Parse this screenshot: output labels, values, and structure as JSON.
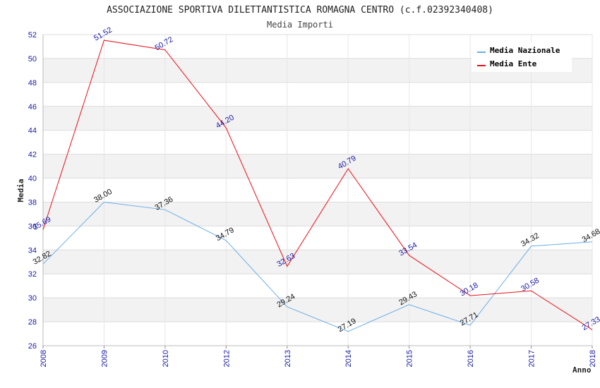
{
  "title": "ASSOCIAZIONE SPORTIVA DILETTANTISTICA ROMAGNA CENTRO (c.f.02392340408)",
  "subtitle": "Media Importi",
  "chart_data": {
    "type": "line",
    "categories": [
      "2008",
      "2009",
      "2010",
      "2012",
      "2013",
      "2014",
      "2015",
      "2016",
      "2017",
      "2018"
    ],
    "series": [
      {
        "name": "Media Nazionale",
        "color": "#6aaee8",
        "label_color": "#111111",
        "values": [
          32.82,
          38.0,
          37.36,
          34.79,
          29.24,
          27.19,
          29.43,
          27.71,
          34.32,
          34.68
        ],
        "labels": [
          "32.82",
          "38.00",
          "37.36",
          "34.79",
          "29.24",
          "27.19",
          "29.43",
          "27.71",
          "34.32",
          "34.68"
        ]
      },
      {
        "name": "Media Ente",
        "color": "#e8101a",
        "label_color": "#1a1aa6",
        "values": [
          35.69,
          51.52,
          50.72,
          44.2,
          32.63,
          40.79,
          33.54,
          30.18,
          30.58,
          27.33
        ],
        "labels": [
          "35.69",
          "51.52",
          "50.72",
          "44.20",
          "32.63",
          "40.79",
          "33.54",
          "30.18",
          "30.58",
          "27.33"
        ]
      }
    ],
    "xlabel": "Anno",
    "ylabel": "Media",
    "ylim": [
      26,
      52
    ],
    "yticks": [
      "26",
      "28",
      "30",
      "32",
      "34",
      "36",
      "38",
      "40",
      "42",
      "44",
      "46",
      "48",
      "50",
      "52"
    ],
    "grid": true,
    "legend_position": "top-right"
  }
}
